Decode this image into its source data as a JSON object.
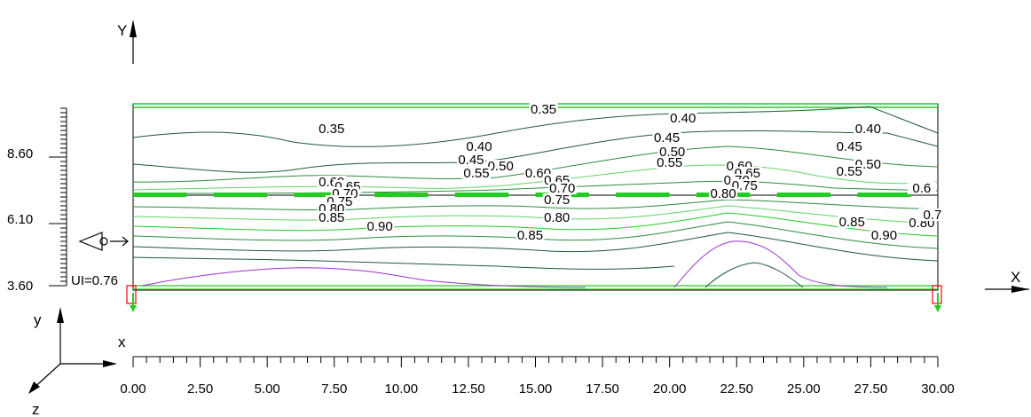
{
  "axes": {
    "big_y_label": "Y",
    "big_x_label": "X",
    "small_x": "x",
    "small_y": "y",
    "small_z": "z"
  },
  "uniformity_label": "UI=0.76",
  "x_axis": {
    "min": 0,
    "max": 30,
    "ticks": [
      "0.00",
      "2.50",
      "5.00",
      "7.50",
      "10.00",
      "12.50",
      "15.00",
      "17.50",
      "20.00",
      "22.50",
      "25.00",
      "27.50",
      "30.00"
    ]
  },
  "y_axis": {
    "ticks": [
      "3.60",
      "6.10",
      "8.60"
    ]
  },
  "contour_labels": [
    {
      "text": "0.35",
      "x": 15.3,
      "y": 0.92
    },
    {
      "text": "0.35",
      "x": 7.4,
      "y": 0.7
    },
    {
      "text": "0.40",
      "x": 20.5,
      "y": 0.82
    },
    {
      "text": "0.40",
      "x": 27.4,
      "y": 0.7
    },
    {
      "text": "0.45",
      "x": 19.9,
      "y": 0.6
    },
    {
      "text": "0.40",
      "x": 12.9,
      "y": 0.5
    },
    {
      "text": "0.45",
      "x": 26.7,
      "y": 0.5
    },
    {
      "text": "0.50",
      "x": 20.1,
      "y": 0.44
    },
    {
      "text": "0.45",
      "x": 12.6,
      "y": 0.35
    },
    {
      "text": "0.50",
      "x": 13.7,
      "y": 0.28
    },
    {
      "text": "0.55",
      "x": 20.0,
      "y": 0.32
    },
    {
      "text": "0.60",
      "x": 22.6,
      "y": 0.28
    },
    {
      "text": "0.50",
      "x": 27.4,
      "y": 0.3
    },
    {
      "text": "0.55",
      "x": 12.8,
      "y": 0.2
    },
    {
      "text": "0.60",
      "x": 15.1,
      "y": 0.2
    },
    {
      "text": "0.65",
      "x": 22.9,
      "y": 0.2
    },
    {
      "text": "0.55",
      "x": 26.7,
      "y": 0.22
    },
    {
      "text": "0.60",
      "x": 7.4,
      "y": 0.1
    },
    {
      "text": "0.65",
      "x": 15.8,
      "y": 0.12
    },
    {
      "text": "0.70",
      "x": 22.5,
      "y": 0.12
    },
    {
      "text": "0.65",
      "x": 8.0,
      "y": 0.05
    },
    {
      "text": "0.70",
      "x": 16.0,
      "y": 0.03
    },
    {
      "text": "0.75",
      "x": 22.8,
      "y": 0.06
    },
    {
      "text": "0.6",
      "x": 29.4,
      "y": 0.03
    },
    {
      "text": "0.70",
      "x": 7.9,
      "y": -0.03
    },
    {
      "text": "0.75",
      "x": 15.8,
      "y": -0.1
    },
    {
      "text": "0.80",
      "x": 22.0,
      "y": -0.03
    },
    {
      "text": "0.75",
      "x": 7.7,
      "y": -0.12
    },
    {
      "text": "0.80",
      "x": 7.4,
      "y": -0.2
    },
    {
      "text": "0.80",
      "x": 15.8,
      "y": -0.3
    },
    {
      "text": "0.85",
      "x": 7.4,
      "y": -0.3
    },
    {
      "text": "0.85",
      "x": 26.8,
      "y": -0.35
    },
    {
      "text": "0.80",
      "x": 29.4,
      "y": -0.36
    },
    {
      "text": "0.90",
      "x": 9.2,
      "y": -0.4
    },
    {
      "text": "0.85",
      "x": 14.8,
      "y": -0.5
    },
    {
      "text": "0.90",
      "x": 28.0,
      "y": -0.5
    },
    {
      "text": "0.7",
      "x": 29.8,
      "y": -0.27
    }
  ],
  "colors": {
    "dark_contour": "#1f5a3a",
    "mid_contour": "#2e8b3e",
    "light_contour": "#5fd36a",
    "bright_green": "#22cc22",
    "purple": "#9933cc",
    "support_red": "#ff0000"
  }
}
